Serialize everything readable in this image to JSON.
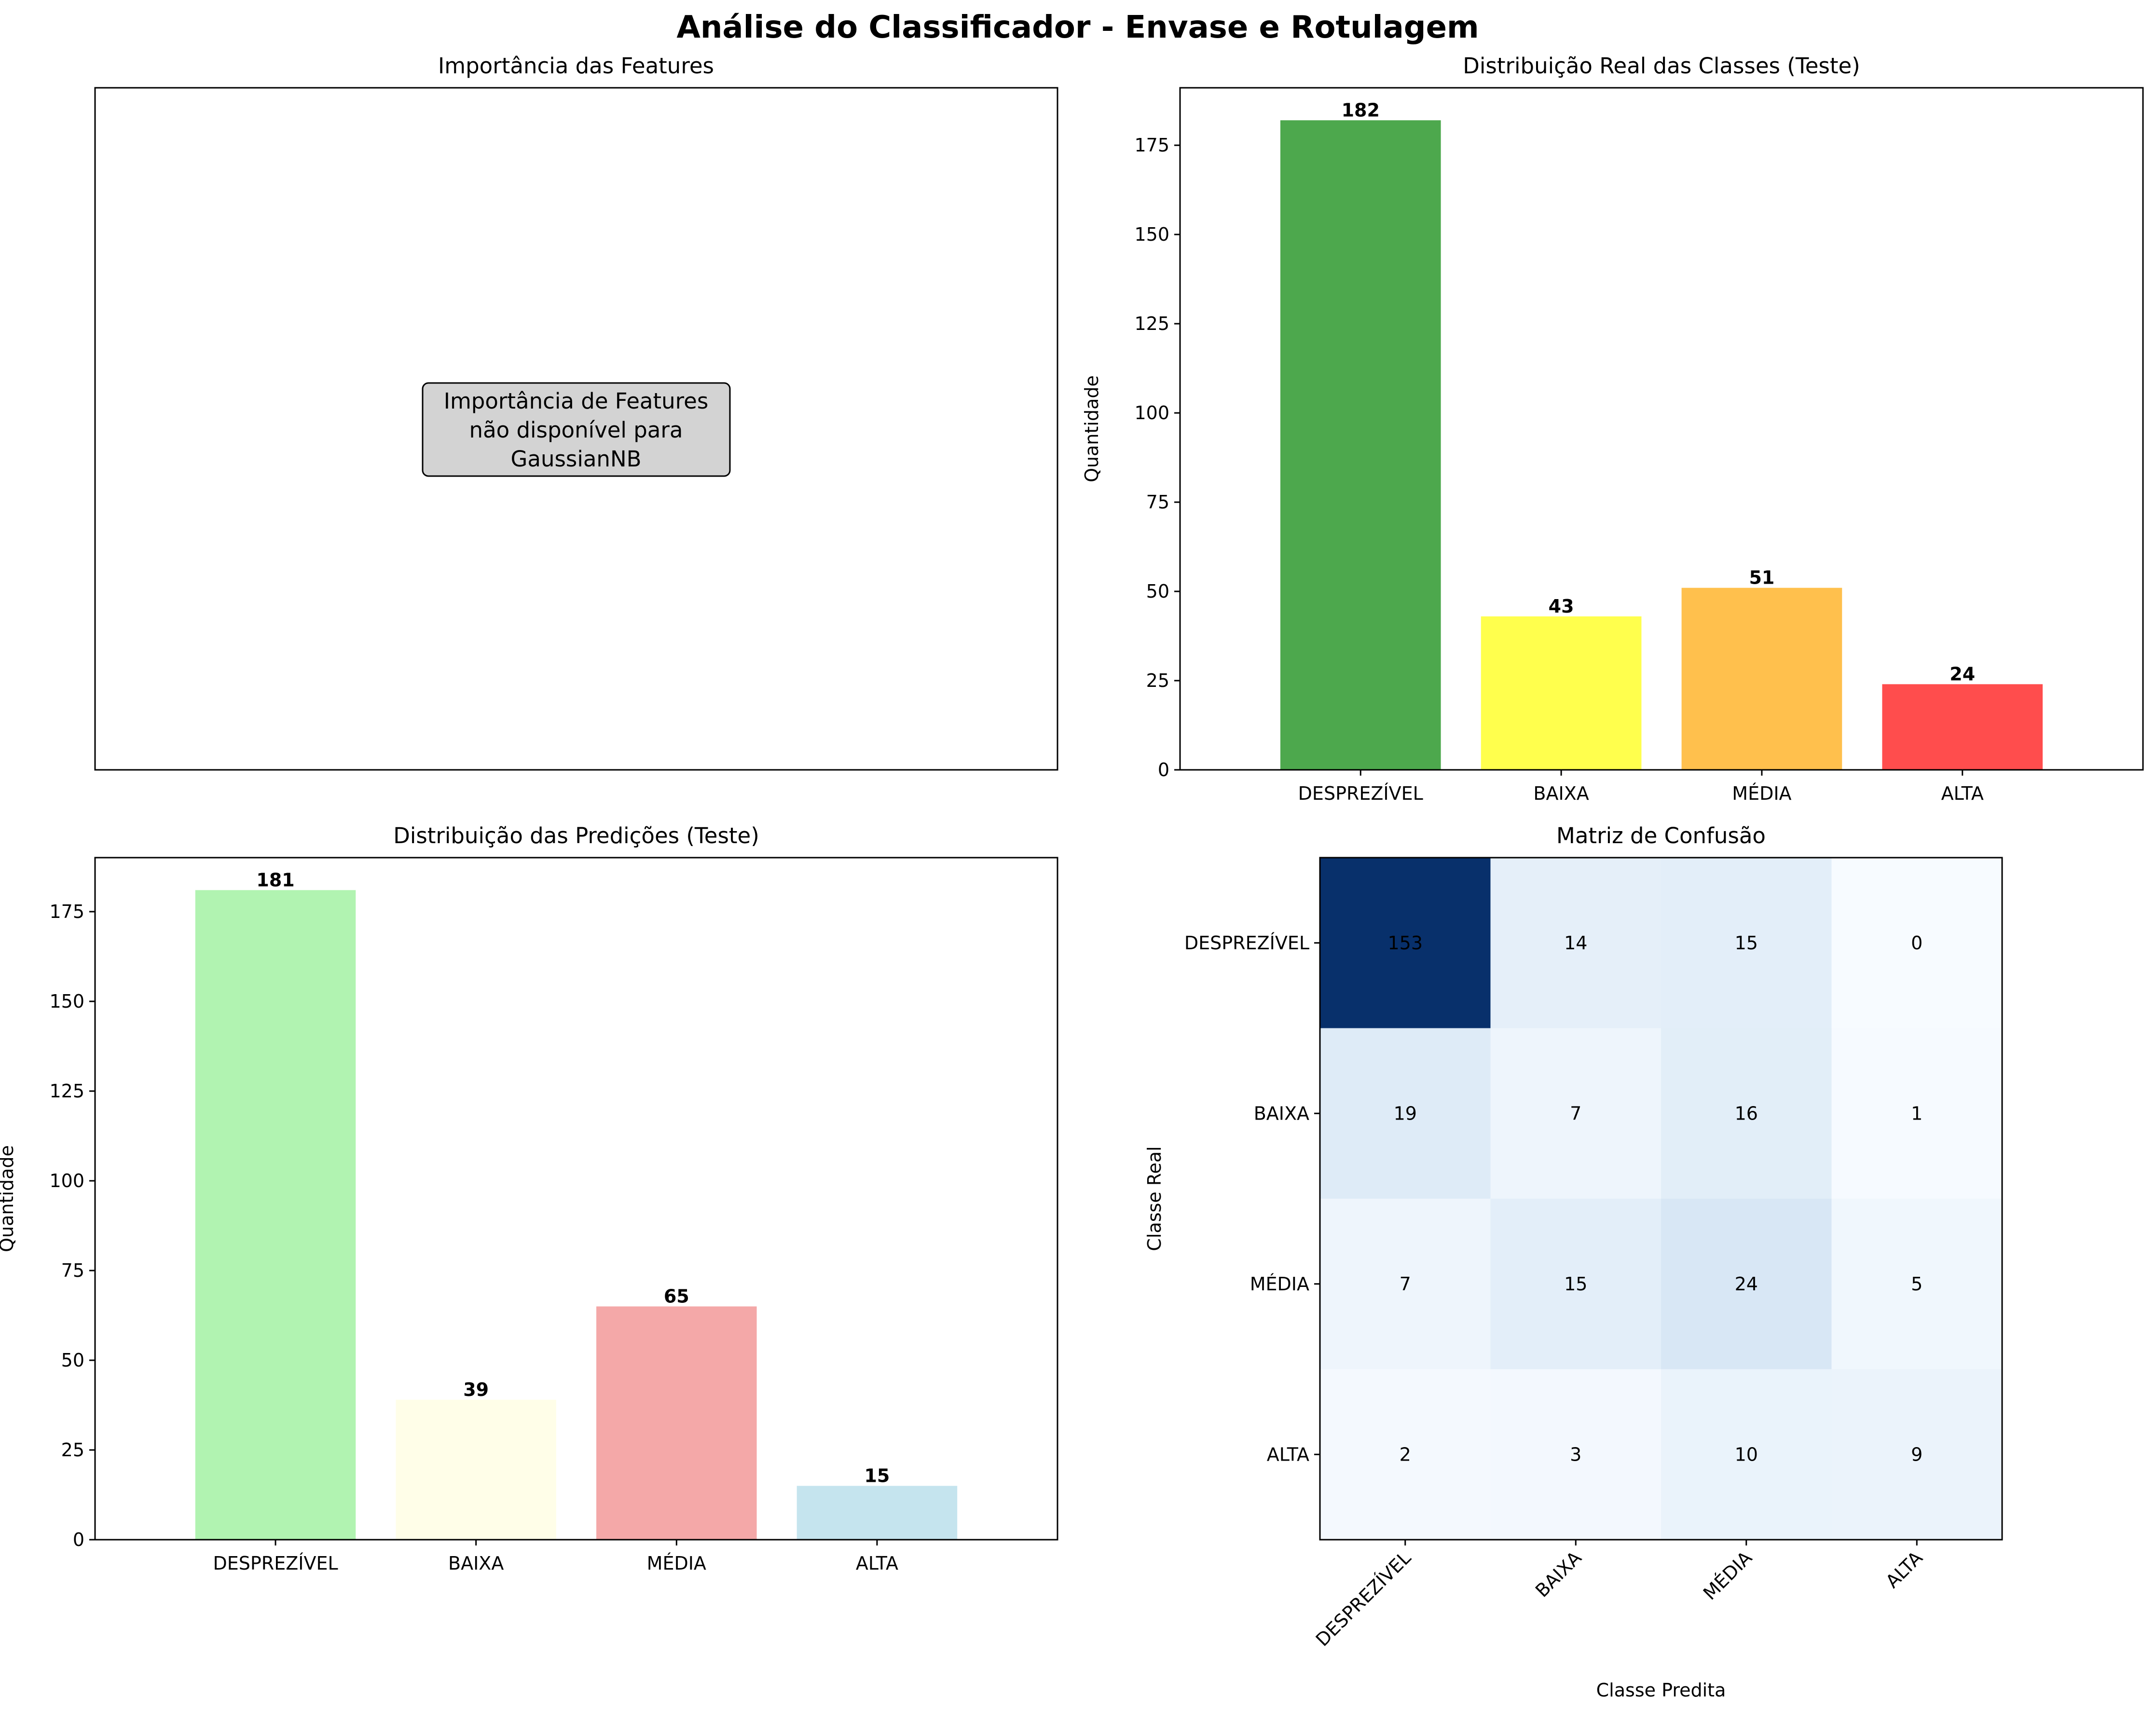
{
  "figure": {
    "title": "Análise do Classificador - Envase e Rotulagem"
  },
  "panels": {
    "importance": {
      "title": "Importância das Features",
      "note_lines": [
        "Importância de Features",
        "não disponível para",
        "GaussianNB"
      ]
    }
  },
  "chart_data": [
    {
      "type": "bar",
      "title": "Distribuição Real das Classes (Teste)",
      "xlabel": "",
      "ylabel": "Quantidade",
      "categories": [
        "DESPREZÍVEL",
        "BAIXA",
        "MÉDIA",
        "ALTA"
      ],
      "values": [
        182,
        43,
        51,
        24
      ],
      "colors": [
        "#4da84d",
        "#ffff4d",
        "#ffc04d",
        "#ff4d4d"
      ],
      "ylim": [
        0,
        191.1
      ],
      "yticks": [
        0,
        25,
        50,
        75,
        100,
        125,
        150,
        175
      ],
      "grid": false
    },
    {
      "type": "bar",
      "title": "Distribuição das Predições (Teste)",
      "xlabel": "",
      "ylabel": "Quantidade",
      "categories": [
        "DESPREZÍVEL",
        "BAIXA",
        "MÉDIA",
        "ALTA"
      ],
      "values": [
        181,
        39,
        65,
        15
      ],
      "colors": [
        "#b1f3b1",
        "#fffee8",
        "#f4a8a8",
        "#c5e4ee"
      ],
      "ylim": [
        0,
        190.05
      ],
      "yticks": [
        0,
        25,
        50,
        75,
        100,
        125,
        150,
        175
      ],
      "grid": false
    },
    {
      "type": "heatmap",
      "title": "Matriz de Confusão",
      "xlabel": "Classe Predita",
      "ylabel": "Classe Real",
      "x_categories": [
        "DESPREZÍVEL",
        "BAIXA",
        "MÉDIA",
        "ALTA"
      ],
      "y_categories": [
        "DESPREZÍVEL",
        "BAIXA",
        "MÉDIA",
        "ALTA"
      ],
      "matrix": [
        [
          153,
          14,
          15,
          0
        ],
        [
          19,
          7,
          16,
          1
        ],
        [
          7,
          15,
          24,
          5
        ],
        [
          2,
          3,
          10,
          9
        ]
      ],
      "colormap": "Blues"
    }
  ]
}
